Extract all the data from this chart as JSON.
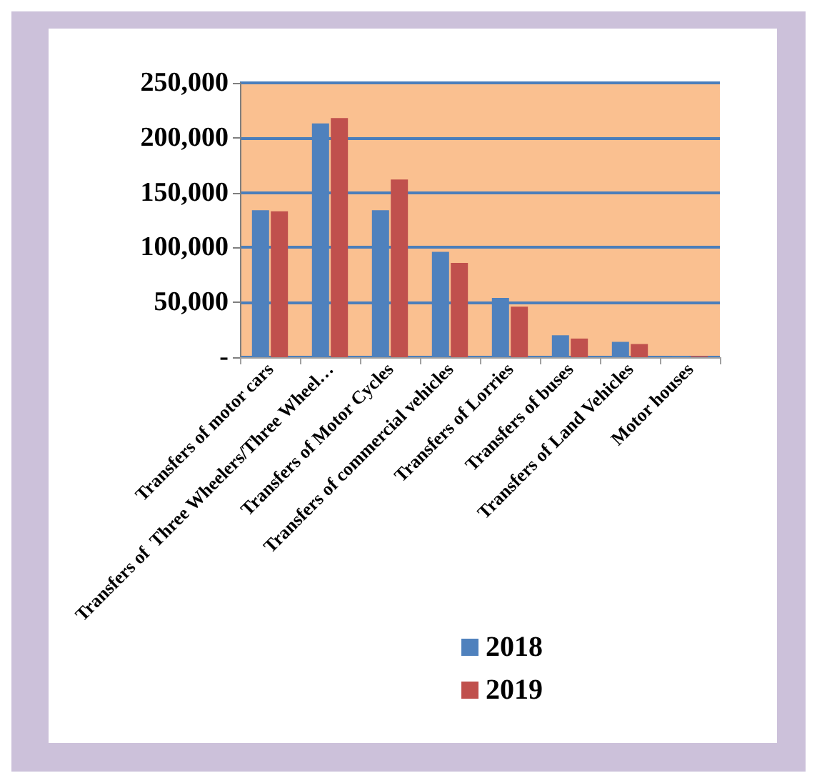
{
  "chart_data": {
    "type": "bar",
    "categories": [
      "Transfers of motor cars",
      "Transfers of  Three Wheelers/Three Wheel…",
      "Transfers of Motor Cycles",
      "Transfers of commercial vehicles",
      "Transfers of Lorries",
      "Transfers of buses",
      "Transfers of Land Vehicles",
      "Motor houses"
    ],
    "series": [
      {
        "name": "2018",
        "color": "#4f81bd",
        "values": [
          134000,
          213000,
          134000,
          96000,
          54000,
          20000,
          14000,
          1000
        ]
      },
      {
        "name": "2019",
        "color": "#c0504d",
        "values": [
          133000,
          218000,
          162000,
          86000,
          46000,
          17000,
          12000,
          1000
        ]
      }
    ],
    "ylim": [
      0,
      250000
    ],
    "yticks": [
      {
        "value": 0,
        "label": "-"
      },
      {
        "value": 50000,
        "label": "50,000"
      },
      {
        "value": 100000,
        "label": "100,000"
      },
      {
        "value": 150000,
        "label": "150,000"
      },
      {
        "value": 200000,
        "label": "200,000"
      },
      {
        "value": 250000,
        "label": "250,000"
      }
    ],
    "grid": "y",
    "legend": "bottom"
  }
}
